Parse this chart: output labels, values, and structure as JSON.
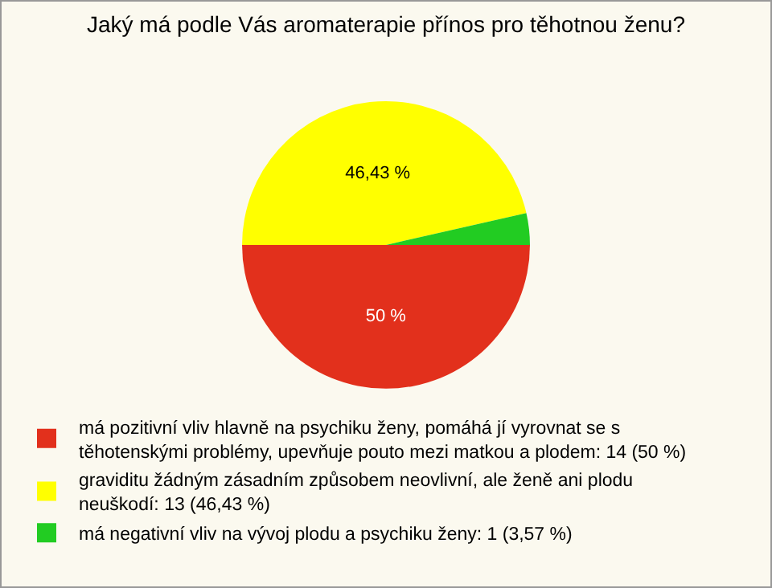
{
  "chart_data": {
    "type": "pie",
    "title": "Jaký má podle Vás aromaterapie přínos pro těhotnou ženu?",
    "categories": [
      "má pozitivní vliv hlavně na psychiku ženy, pomáhá jí vyrovnat se s těhotenskými problémy, upevňuje pouto mezi matkou a plodem: 14 (50 %)",
      "graviditu žádným zásadním způsobem neovlivní, ale ženě ani plodu neuškodí: 13 (46,43 %)",
      "má negativní vliv na vývoj plodu a psychiku ženy: 1 (3,57 %)"
    ],
    "values": [
      50,
      46.43,
      3.57
    ],
    "colors": [
      "#e2301c",
      "#ffff00",
      "#22cc22"
    ],
    "value_labels": [
      "50 %",
      "46,43 %",
      null
    ],
    "legend": "bottom"
  }
}
